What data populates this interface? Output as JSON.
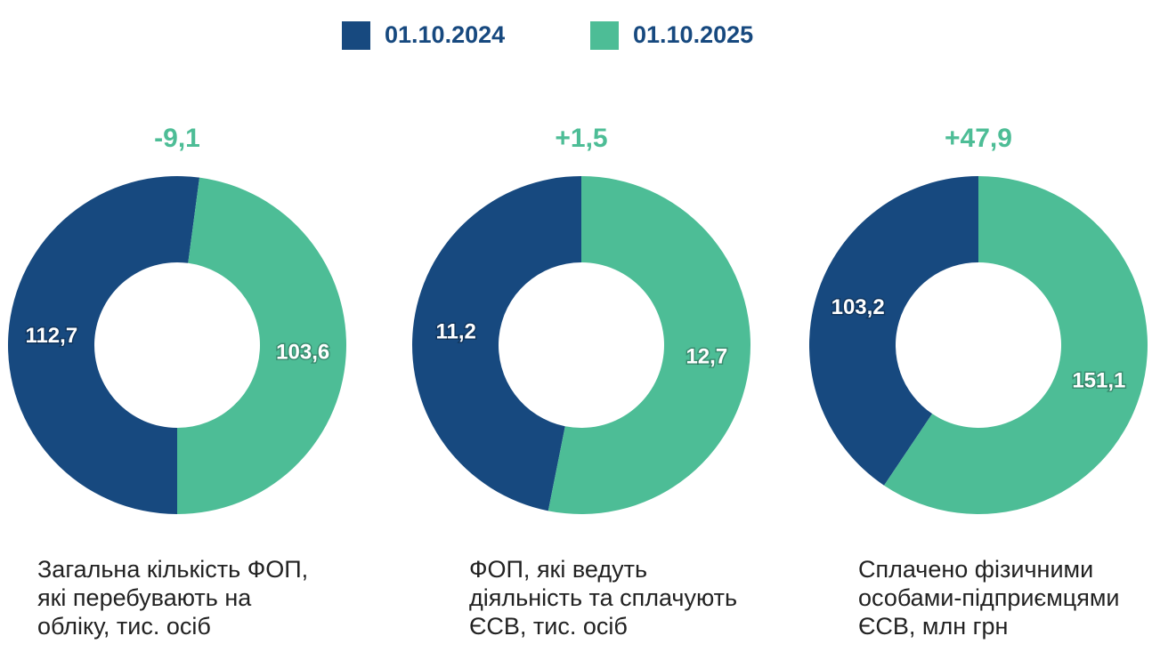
{
  "legend": [
    {
      "name": "01.10.2024",
      "color": "#17497f"
    },
    {
      "name": "01.10.2025",
      "color": "#4dbd96"
    }
  ],
  "chart_data": [
    {
      "type": "donut",
      "annotation": "-9,1",
      "values": [
        112.7,
        103.6
      ],
      "value_labels": [
        "112,7",
        "103,6"
      ],
      "start_angle": 180,
      "clockwise": true,
      "caption": [
        "Загальна кількість ФОП,",
        "які перебувають на",
        "обліку, тис. осіб"
      ]
    },
    {
      "type": "donut",
      "annotation": "+1,5",
      "values": [
        11.2,
        12.7
      ],
      "value_labels": [
        "11,2",
        "12,7"
      ],
      "start_angle": 0,
      "clockwise": false,
      "caption": [
        "ФОП, які ведуть",
        "діяльність та сплачують",
        "ЄСВ, тис. осіб"
      ]
    },
    {
      "type": "donut",
      "annotation": "+47,9",
      "values": [
        103.2,
        151.1
      ],
      "value_labels": [
        "103,2",
        "151,1"
      ],
      "start_angle": 0,
      "clockwise": false,
      "caption": [
        "Сплачено фізичними",
        "особами-підприємцями",
        "ЄСВ, млн грн"
      ]
    }
  ]
}
